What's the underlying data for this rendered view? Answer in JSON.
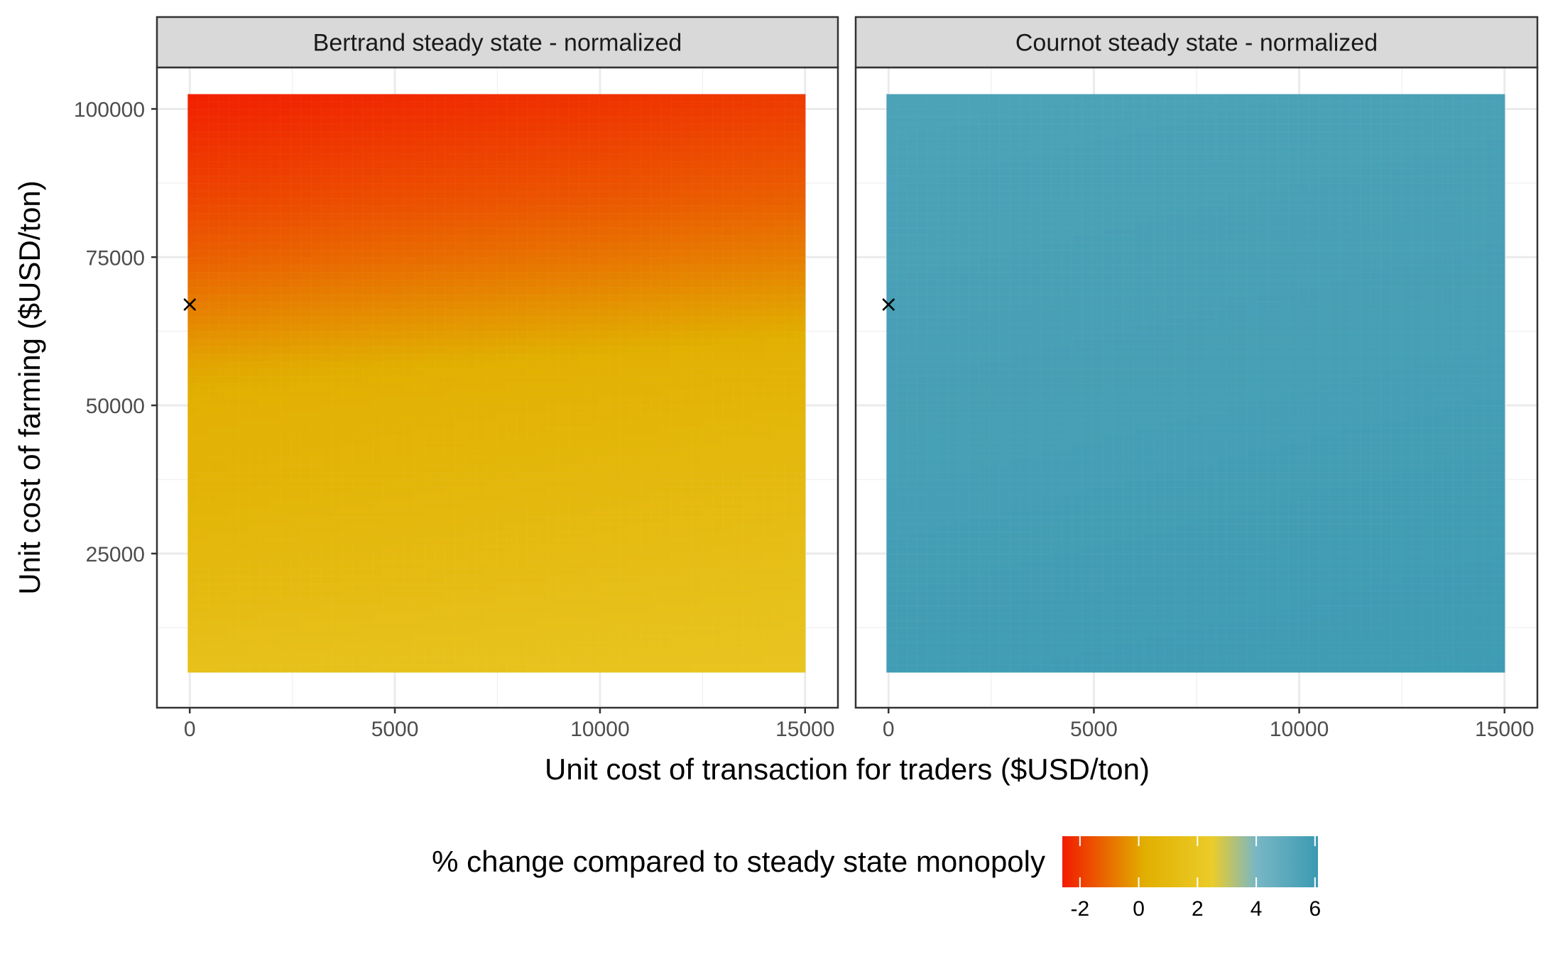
{
  "chart_data": {
    "type": "heatmap",
    "xlabel": "Unit cost of transaction for traders ($USD/ton)",
    "ylabel": "Unit cost of farming ($USD/ton)",
    "xlim": [
      -800,
      15800
    ],
    "ylim": [
      -1000,
      107000
    ],
    "x_ticks": [
      0,
      5000,
      10000,
      15000
    ],
    "x_tick_labels": [
      "0",
      "5000",
      "10000",
      "15000"
    ],
    "y_ticks": [
      25000,
      50000,
      75000,
      100000
    ],
    "y_tick_labels": [
      "25000",
      "50000",
      "75000",
      "100000"
    ],
    "grid": true,
    "tile_extent": {
      "x": [
        -50,
        15000
      ],
      "y": [
        5000,
        102500
      ]
    },
    "baseline_marker": {
      "x": 0,
      "y": 67000,
      "symbol": "x"
    },
    "panels": [
      {
        "title": "Bertrand steady state - normalized",
        "value_grid_description": "value varies with y mainly",
        "grid_x": [
          0,
          15000
        ],
        "grid_y": [
          5000,
          20000,
          35000,
          50000,
          57000,
          65000,
          75000,
          85000,
          95000,
          102500
        ],
        "values_at_x0": [
          1.6,
          1.0,
          0.6,
          0.3,
          0.0,
          -0.6,
          -1.3,
          -1.8,
          -2.2,
          -2.5
        ],
        "values_at_x15000": [
          1.9,
          1.5,
          1.1,
          0.7,
          0.5,
          0.0,
          -0.7,
          -1.3,
          -1.7,
          -2.0
        ]
      },
      {
        "title": "Cournot steady state - normalized",
        "grid_x": [
          0,
          15000
        ],
        "grid_y": [
          5000,
          102500
        ],
        "values_at_x0": [
          5.9,
          5.5
        ],
        "values_at_x15000": [
          6.0,
          5.6
        ]
      }
    ],
    "legend": {
      "title": "% change compared to steady state monopoly",
      "position": "bottom",
      "range": [
        -2.6,
        6.1
      ],
      "ticks": [
        -2,
        0,
        2,
        4,
        6
      ],
      "tick_labels": [
        "-2",
        "0",
        "2",
        "4",
        "6"
      ],
      "color_stops": [
        {
          "value": -2.6,
          "color": "#F21A00"
        },
        {
          "value": 0.2,
          "color": "#E1AF00"
        },
        {
          "value": 2.5,
          "color": "#EBCC2A"
        },
        {
          "value": 4.0,
          "color": "#78B7C5"
        },
        {
          "value": 6.1,
          "color": "#3B9AB2"
        }
      ]
    }
  }
}
